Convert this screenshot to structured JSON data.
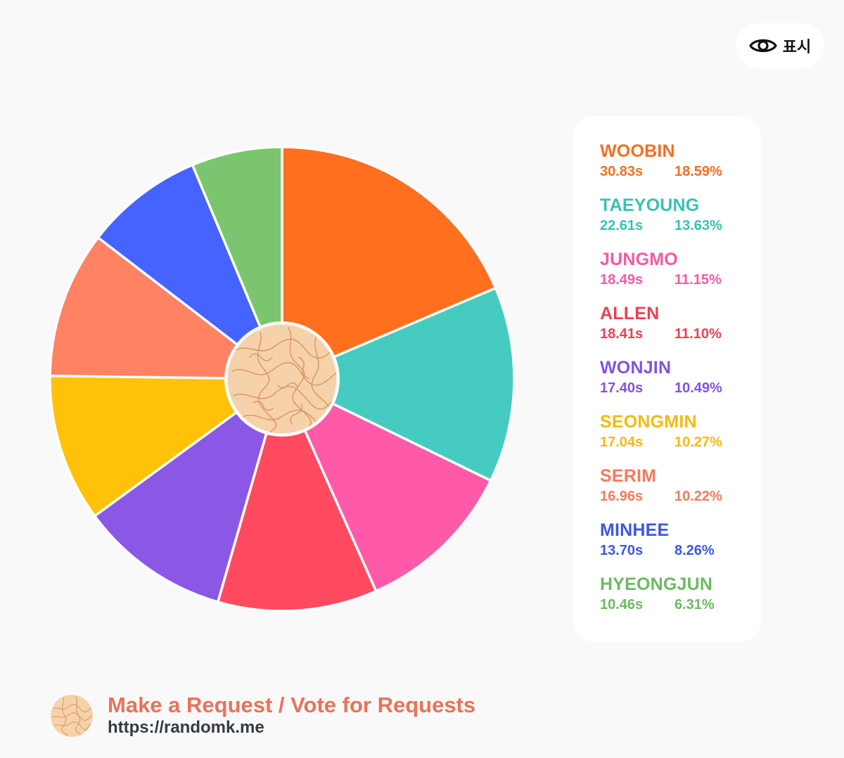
{
  "toggle": {
    "label": "표시",
    "icon": "eye-icon"
  },
  "chart_data": {
    "type": "pie",
    "center_icon": "brain-pattern-icon",
    "slices": [
      {
        "name": "WOOBIN",
        "time": "30.83s",
        "percent": "18.59%",
        "value": 18.59,
        "color": "#ff6f1e"
      },
      {
        "name": "TAEYOUNG",
        "time": "22.61s",
        "percent": "13.63%",
        "value": 13.63,
        "color": "#46cbc0"
      },
      {
        "name": "JUNGMO",
        "time": "18.49s",
        "percent": "11.15%",
        "value": 11.15,
        "color": "#ff5aaa"
      },
      {
        "name": "ALLEN",
        "time": "18.41s",
        "percent": "11.10%",
        "value": 11.1,
        "color": "#ff4a60"
      },
      {
        "name": "WONJIN",
        "time": "17.40s",
        "percent": "10.49%",
        "value": 10.49,
        "color": "#8b58e6"
      },
      {
        "name": "SEONGMIN",
        "time": "17.04s",
        "percent": "10.27%",
        "value": 10.27,
        "color": "#ffc208"
      },
      {
        "name": "SERIM",
        "time": "16.96s",
        "percent": "10.22%",
        "value": 10.22,
        "color": "#ff8263"
      },
      {
        "name": "MINHEE",
        "time": "13.70s",
        "percent": "8.26%",
        "value": 8.26,
        "color": "#4563ff"
      },
      {
        "name": "HYEONGJUN",
        "time": "10.46s",
        "percent": "6.31%",
        "value": 6.31,
        "color": "#7ac56e"
      }
    ]
  },
  "legend_colors": {
    "WOOBIN": "#f56f1f",
    "TAEYOUNG": "#37c2b5",
    "JUNGMO": "#f55aa5",
    "ALLEN": "#ec3f55",
    "WONJIN": "#8553e0",
    "SEONGMIN": "#f5bb0a",
    "SERIM": "#f57a5d",
    "MINHEE": "#3d57e8",
    "HYEONGJUN": "#6cba62"
  },
  "footer": {
    "logo_icon": "brain-pattern-icon",
    "request_text": "Make a Request / Vote for Requests",
    "url_text": "https://randomk.me"
  }
}
